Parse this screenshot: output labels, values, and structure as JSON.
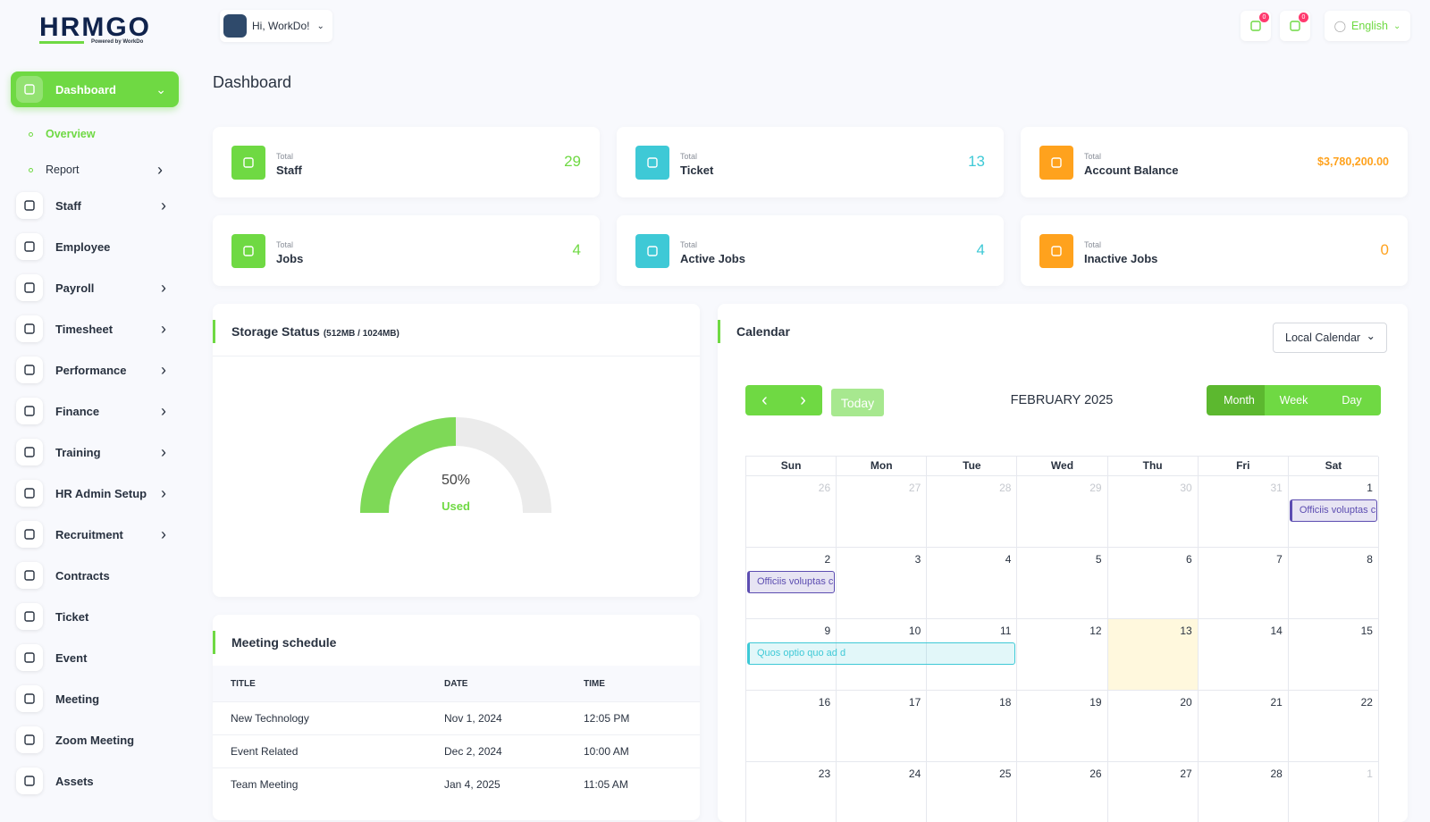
{
  "brand": {
    "logo": "HRMGO",
    "tagline": "Powered by WorkDo"
  },
  "header": {
    "greeting": "Hi, WorkDo!",
    "notifications": [
      0,
      0
    ],
    "language": "English"
  },
  "sidebar": {
    "items": [
      {
        "label": "Dashboard",
        "active": true,
        "expanded": true,
        "children": [
          {
            "label": "Overview",
            "active": true
          },
          {
            "label": "Report",
            "submenu": true
          }
        ]
      },
      {
        "label": "Staff",
        "submenu": true
      },
      {
        "label": "Employee"
      },
      {
        "label": "Payroll",
        "submenu": true
      },
      {
        "label": "Timesheet",
        "submenu": true
      },
      {
        "label": "Performance",
        "submenu": true
      },
      {
        "label": "Finance",
        "submenu": true
      },
      {
        "label": "Training",
        "submenu": true
      },
      {
        "label": "HR Admin Setup",
        "submenu": true
      },
      {
        "label": "Recruitment",
        "submenu": true
      },
      {
        "label": "Contracts"
      },
      {
        "label": "Ticket"
      },
      {
        "label": "Event"
      },
      {
        "label": "Meeting"
      },
      {
        "label": "Zoom Meeting"
      },
      {
        "label": "Assets"
      }
    ]
  },
  "page_title": "Dashboard",
  "stats": [
    {
      "caption": "Total",
      "label": "Staff",
      "value": 29,
      "color": "#6fd943"
    },
    {
      "caption": "Total",
      "label": "Ticket",
      "value": 13,
      "color": "#3ec9d6"
    },
    {
      "caption": "Total",
      "label": "Account Balance",
      "value": "$3,780,200.00",
      "color": "#ffa21d"
    },
    {
      "caption": "Total",
      "label": "Jobs",
      "value": 4,
      "color": "#6fd943"
    },
    {
      "caption": "Total",
      "label": "Active Jobs",
      "value": 4,
      "color": "#3ec9d6"
    },
    {
      "caption": "Total",
      "label": "Inactive Jobs",
      "value": 0,
      "color": "#ffa21d"
    }
  ],
  "storage": {
    "title": "Storage Status",
    "detail": "(512MB / 1024MB)",
    "gauge": {
      "value": 50,
      "label": "50%"
    },
    "caption": "Used"
  },
  "meetings": {
    "title": "Meeting schedule",
    "columns": [
      "TITLE",
      "DATE",
      "TIME"
    ],
    "rows": [
      [
        "New Technology",
        "Nov 1, 2024",
        "12:05 PM"
      ],
      [
        "Event Related",
        "Dec 2, 2024",
        "10:00 AM"
      ],
      [
        "Team Meeting",
        "Jan 4, 2025",
        "11:05 AM"
      ]
    ]
  },
  "calendar": {
    "title": "Calendar",
    "source": "Local Calendar",
    "today_button": "Today",
    "month": "FEBRUARY 2025",
    "views": [
      "Month",
      "Week",
      "Day"
    ],
    "active_view": "Month",
    "weekdays": [
      "Sun",
      "Mon",
      "Tue",
      "Wed",
      "Thu",
      "Fri",
      "Sat"
    ],
    "weeks": [
      [
        26,
        27,
        28,
        29,
        30,
        31,
        1
      ],
      [
        2,
        3,
        4,
        5,
        6,
        7,
        8
      ],
      [
        9,
        10,
        11,
        12,
        13,
        14,
        15
      ],
      [
        16,
        17,
        18,
        19,
        20,
        21,
        22
      ],
      [
        23,
        24,
        25,
        26,
        27,
        28,
        1
      ]
    ],
    "today": 13,
    "events": [
      {
        "title": "Officiis voluptas c",
        "start": 1,
        "end": 1,
        "color": "#5c4db1"
      },
      {
        "title": "Officiis voluptas c",
        "start": 2,
        "end": 2,
        "color": "#5c4db1"
      },
      {
        "title": "Quos optio quo ad d",
        "start": 9,
        "end": 11,
        "color": "#3ec9d6"
      }
    ]
  }
}
